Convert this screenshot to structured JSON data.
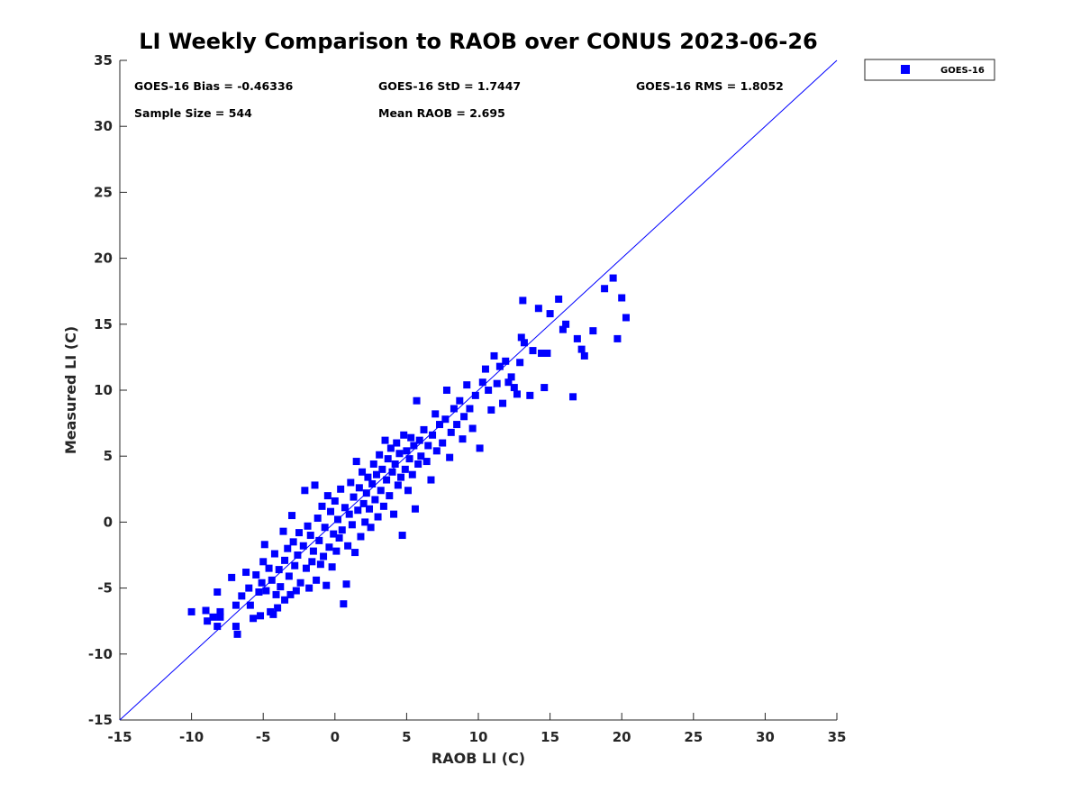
{
  "chart_data": {
    "type": "scatter",
    "title": "LI Weekly Comparison to RAOB over CONUS 2023-06-26",
    "xlabel": "RAOB LI (C)",
    "ylabel": "Measured LI (C)",
    "xlim": [
      -15,
      35
    ],
    "ylim": [
      -15,
      35
    ],
    "xticks": [
      "-15",
      "-10",
      "-5",
      "0",
      "5",
      "10",
      "15",
      "20",
      "25",
      "30",
      "35"
    ],
    "yticks": [
      "-15",
      "-10",
      "-5",
      "0",
      "5",
      "10",
      "15",
      "20",
      "25",
      "30",
      "35"
    ],
    "grid": false,
    "legend": {
      "position": "outside-top-right",
      "entries": [
        "GOES-16"
      ]
    },
    "reference_line": {
      "label": "1:1",
      "from": [
        -15,
        -15
      ],
      "to": [
        35,
        35
      ],
      "color": "#0000ff"
    },
    "marker_color": "#0000ff",
    "stats": {
      "bias": "GOES-16 Bias = -0.46336",
      "std": "GOES-16 StD = 1.7447",
      "rms": "GOES-16 RMS = 1.8052",
      "sample": "Sample Size = 544",
      "mean": "Mean RAOB = 2.695"
    },
    "series": [
      {
        "name": "GOES-16",
        "points": [
          [
            -10.0,
            -6.8
          ],
          [
            -9.0,
            -6.7
          ],
          [
            -8.9,
            -7.5
          ],
          [
            -8.5,
            -7.2
          ],
          [
            -8.2,
            -5.3
          ],
          [
            -8.0,
            -6.8
          ],
          [
            -8.0,
            -7.2
          ],
          [
            -8.2,
            -7.9
          ],
          [
            -7.2,
            -4.2
          ],
          [
            -6.9,
            -6.3
          ],
          [
            -6.9,
            -7.9
          ],
          [
            -6.8,
            -8.5
          ],
          [
            -6.5,
            -5.6
          ],
          [
            -6.2,
            -3.8
          ],
          [
            -6.0,
            -5.0
          ],
          [
            -5.9,
            -6.3
          ],
          [
            -5.7,
            -7.3
          ],
          [
            -5.5,
            -4.0
          ],
          [
            -5.3,
            -5.3
          ],
          [
            -5.2,
            -7.1
          ],
          [
            -5.0,
            -3.0
          ],
          [
            -5.1,
            -4.6
          ],
          [
            -4.9,
            -1.7
          ],
          [
            -4.8,
            -5.2
          ],
          [
            -4.6,
            -3.5
          ],
          [
            -4.5,
            -6.8
          ],
          [
            -4.4,
            -4.4
          ],
          [
            -4.3,
            -7.0
          ],
          [
            -4.2,
            -2.4
          ],
          [
            -4.1,
            -5.5
          ],
          [
            -4.0,
            -6.5
          ],
          [
            -3.9,
            -3.6
          ],
          [
            -3.8,
            -4.9
          ],
          [
            -3.6,
            -0.7
          ],
          [
            -3.5,
            -2.9
          ],
          [
            -3.5,
            -5.9
          ],
          [
            -3.3,
            -2.0
          ],
          [
            -3.2,
            -4.1
          ],
          [
            -3.1,
            -5.5
          ],
          [
            -3.0,
            0.5
          ],
          [
            -2.9,
            -1.5
          ],
          [
            -2.8,
            -3.3
          ],
          [
            -2.7,
            -5.2
          ],
          [
            -2.6,
            -2.5
          ],
          [
            -2.5,
            -0.8
          ],
          [
            -2.4,
            -4.6
          ],
          [
            -2.2,
            -1.8
          ],
          [
            -2.1,
            2.4
          ],
          [
            -2.0,
            -3.5
          ],
          [
            -1.9,
            -0.3
          ],
          [
            -1.8,
            -5.0
          ],
          [
            -1.7,
            -1.0
          ],
          [
            -1.6,
            -3.0
          ],
          [
            -1.5,
            -2.2
          ],
          [
            -1.4,
            2.8
          ],
          [
            -1.3,
            -4.4
          ],
          [
            -1.2,
            0.3
          ],
          [
            -1.1,
            -1.4
          ],
          [
            -1.0,
            -3.2
          ],
          [
            -0.9,
            1.2
          ],
          [
            -0.8,
            -2.6
          ],
          [
            -0.7,
            -0.4
          ],
          [
            -0.6,
            -4.8
          ],
          [
            -0.5,
            2.0
          ],
          [
            -0.4,
            -1.9
          ],
          [
            -0.3,
            0.8
          ],
          [
            -0.2,
            -3.4
          ],
          [
            -0.1,
            -0.9
          ],
          [
            0.0,
            1.6
          ],
          [
            0.1,
            -2.2
          ],
          [
            0.2,
            0.2
          ],
          [
            0.3,
            -1.2
          ],
          [
            0.4,
            2.5
          ],
          [
            0.5,
            -0.6
          ],
          [
            0.6,
            -6.2
          ],
          [
            0.7,
            1.1
          ],
          [
            0.8,
            -4.7
          ],
          [
            0.9,
            -1.8
          ],
          [
            1.0,
            0.6
          ],
          [
            1.1,
            3.0
          ],
          [
            1.2,
            -0.2
          ],
          [
            1.3,
            1.9
          ],
          [
            1.4,
            -2.3
          ],
          [
            1.5,
            4.6
          ],
          [
            1.6,
            0.9
          ],
          [
            1.7,
            2.6
          ],
          [
            1.8,
            -1.1
          ],
          [
            1.9,
            3.8
          ],
          [
            2.0,
            1.4
          ],
          [
            2.1,
            0.0
          ],
          [
            2.2,
            2.2
          ],
          [
            2.3,
            3.4
          ],
          [
            2.4,
            1.0
          ],
          [
            2.5,
            -0.4
          ],
          [
            2.6,
            2.9
          ],
          [
            2.7,
            4.4
          ],
          [
            2.8,
            1.7
          ],
          [
            2.9,
            3.6
          ],
          [
            3.0,
            0.4
          ],
          [
            3.1,
            5.1
          ],
          [
            3.2,
            2.4
          ],
          [
            3.3,
            4.0
          ],
          [
            3.4,
            1.2
          ],
          [
            3.5,
            6.2
          ],
          [
            3.6,
            3.2
          ],
          [
            3.7,
            4.8
          ],
          [
            3.8,
            2.0
          ],
          [
            3.9,
            5.6
          ],
          [
            4.0,
            3.8
          ],
          [
            4.1,
            0.6
          ],
          [
            4.2,
            4.4
          ],
          [
            4.3,
            6.0
          ],
          [
            4.4,
            2.8
          ],
          [
            4.5,
            5.2
          ],
          [
            4.6,
            3.4
          ],
          [
            4.7,
            -1.0
          ],
          [
            4.8,
            6.6
          ],
          [
            4.9,
            4.0
          ],
          [
            5.0,
            5.4
          ],
          [
            5.1,
            2.4
          ],
          [
            5.2,
            4.8
          ],
          [
            5.3,
            6.4
          ],
          [
            5.4,
            3.6
          ],
          [
            5.5,
            5.8
          ],
          [
            5.6,
            1.0
          ],
          [
            5.7,
            9.2
          ],
          [
            5.8,
            4.4
          ],
          [
            5.9,
            6.2
          ],
          [
            6.0,
            5.0
          ],
          [
            6.2,
            7.0
          ],
          [
            6.4,
            4.6
          ],
          [
            6.5,
            5.8
          ],
          [
            6.7,
            3.2
          ],
          [
            6.8,
            6.6
          ],
          [
            7.0,
            8.2
          ],
          [
            7.1,
            5.4
          ],
          [
            7.3,
            7.4
          ],
          [
            7.5,
            6.0
          ],
          [
            7.7,
            7.8
          ],
          [
            7.8,
            10.0
          ],
          [
            8.0,
            4.9
          ],
          [
            8.1,
            6.8
          ],
          [
            8.3,
            8.6
          ],
          [
            8.5,
            7.4
          ],
          [
            8.7,
            9.2
          ],
          [
            8.9,
            6.3
          ],
          [
            9.0,
            8.0
          ],
          [
            9.2,
            10.4
          ],
          [
            9.4,
            8.6
          ],
          [
            9.6,
            7.1
          ],
          [
            9.8,
            9.6
          ],
          [
            10.1,
            5.6
          ],
          [
            10.3,
            10.6
          ],
          [
            10.5,
            11.6
          ],
          [
            10.7,
            10.0
          ],
          [
            10.9,
            8.5
          ],
          [
            11.1,
            12.6
          ],
          [
            11.3,
            10.5
          ],
          [
            11.5,
            11.8
          ],
          [
            11.7,
            9.0
          ],
          [
            11.9,
            12.2
          ],
          [
            12.1,
            10.6
          ],
          [
            12.3,
            11.0
          ],
          [
            12.5,
            10.2
          ],
          [
            12.7,
            9.7
          ],
          [
            12.9,
            12.1
          ],
          [
            13.0,
            14.0
          ],
          [
            13.1,
            16.8
          ],
          [
            13.2,
            13.6
          ],
          [
            13.6,
            9.6
          ],
          [
            13.8,
            13.0
          ],
          [
            14.2,
            16.2
          ],
          [
            14.4,
            12.8
          ],
          [
            14.6,
            10.2
          ],
          [
            14.8,
            12.8
          ],
          [
            15.0,
            15.8
          ],
          [
            15.6,
            16.9
          ],
          [
            15.9,
            14.6
          ],
          [
            16.1,
            15.0
          ],
          [
            16.6,
            9.5
          ],
          [
            16.9,
            13.9
          ],
          [
            17.2,
            13.1
          ],
          [
            17.4,
            12.6
          ],
          [
            18.0,
            14.5
          ],
          [
            18.8,
            17.7
          ],
          [
            19.4,
            18.5
          ],
          [
            19.7,
            13.9
          ],
          [
            20.0,
            17.0
          ],
          [
            20.3,
            15.5
          ]
        ]
      }
    ]
  }
}
